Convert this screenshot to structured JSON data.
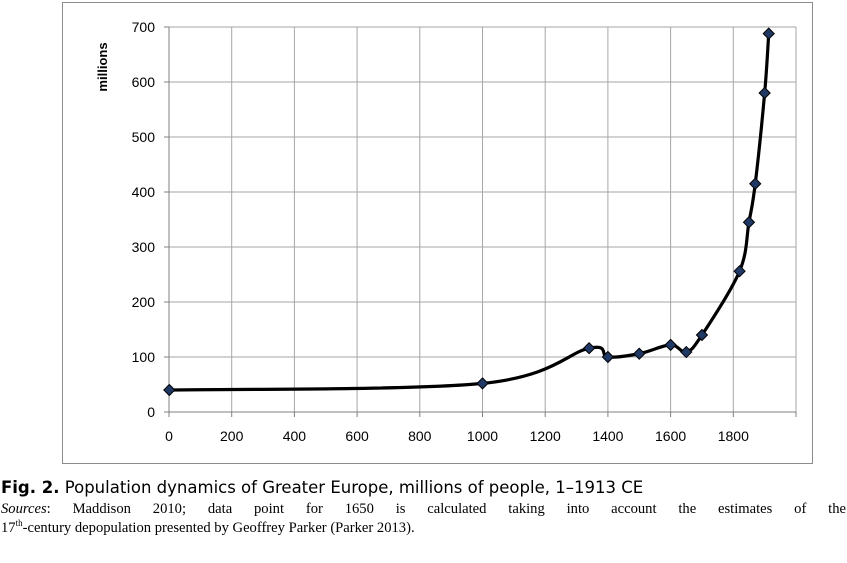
{
  "chart_data": {
    "type": "line",
    "title": "",
    "xlabel": "",
    "ylabel": "millions",
    "xlim": [
      0,
      2000
    ],
    "ylim": [
      0,
      700
    ],
    "x_ticks": [
      "0",
      "200",
      "400",
      "600",
      "800",
      "1000",
      "1200",
      "1400",
      "1600",
      "1800"
    ],
    "y_ticks": [
      "0",
      "100",
      "200",
      "300",
      "400",
      "500",
      "600",
      "700"
    ],
    "grid": true,
    "legend": "none",
    "line_color": "#000000",
    "marker_color": "#1f3864",
    "series": [
      {
        "x": [
          1,
          1000,
          1340,
          1400,
          1500,
          1600,
          1650,
          1700,
          1820,
          1850,
          1870,
          1900,
          1913
        ],
        "values": [
          40,
          52,
          116,
          100,
          106,
          122,
          109,
          140,
          256,
          345,
          415,
          580,
          688
        ]
      }
    ]
  },
  "caption": {
    "fig_label": "Fig. 2.",
    "fig_text": "Population dynamics of Greater Europe, millions of people, 1–1913 CE",
    "sources_label": "Sources",
    "sources_line1": ": Maddison 2010; data point for 1650 is calculated taking into account the estimates of the",
    "sources_line2_pre": "17",
    "sources_line2_sup": "th",
    "sources_line2_post": "-century depopulation presented by Geoffrey Parker (Parker 2013)."
  }
}
